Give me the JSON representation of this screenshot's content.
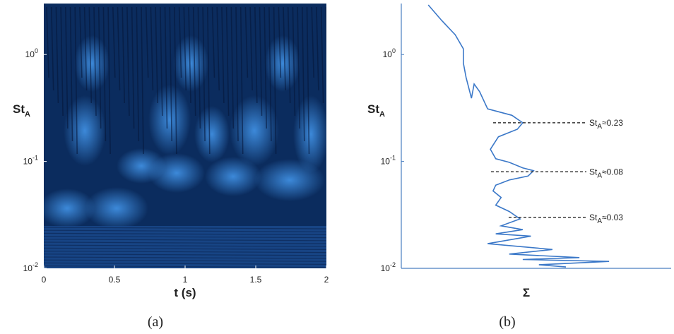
{
  "chart_data": [
    {
      "type": "image",
      "ylabel": {
        "text": "St",
        "sub": "A"
      },
      "xlabel": "t (s)",
      "caption": "(a)",
      "xlim": [
        0,
        2
      ],
      "xticks": [
        0,
        0.5,
        1,
        1.5,
        2
      ],
      "ylim": [
        0.01,
        3
      ],
      "log_y": true,
      "yticks": [
        {
          "value": 1,
          "label": "10",
          "exponent": "0"
        },
        {
          "value": 0.1,
          "label": "10",
          "exponent": "-1"
        },
        {
          "value": 0.01,
          "label": "10",
          "exponent": "-2"
        }
      ]
    },
    {
      "type": "line",
      "ylabel": {
        "text": "St",
        "sub": "A"
      },
      "xlabel": "Σ",
      "caption": "(b)",
      "color": "#3b78c8",
      "xlim": [
        0,
        1
      ],
      "ylim": [
        0.01,
        3
      ],
      "log_y": true,
      "yticks": [
        {
          "value": 1,
          "label": "10",
          "exponent": "0"
        },
        {
          "value": 0.1,
          "label": "10",
          "exponent": "-1"
        },
        {
          "value": 0.01,
          "label": "10",
          "exponent": "-2"
        }
      ],
      "x": [
        0.1,
        0.15,
        0.2,
        0.23,
        0.23,
        0.24,
        0.26,
        0.27,
        0.29,
        0.32,
        0.41,
        0.45,
        0.43,
        0.36,
        0.33,
        0.35,
        0.4,
        0.45,
        0.49,
        0.47,
        0.4,
        0.35,
        0.34,
        0.37,
        0.35,
        0.4,
        0.44,
        0.37,
        0.45,
        0.35,
        0.48,
        0.32,
        0.56,
        0.4,
        0.66,
        0.45,
        0.77,
        0.51,
        0.61
      ],
      "y": [
        2.91,
        2.08,
        1.53,
        1.13,
        0.83,
        0.61,
        0.39,
        0.53,
        0.45,
        0.31,
        0.27,
        0.23,
        0.2,
        0.17,
        0.13,
        0.106,
        0.098,
        0.087,
        0.082,
        0.073,
        0.067,
        0.06,
        0.053,
        0.046,
        0.039,
        0.034,
        0.029,
        0.025,
        0.023,
        0.021,
        0.02,
        0.017,
        0.015,
        0.0136,
        0.0126,
        0.0121,
        0.0116,
        0.0108,
        0.0103
      ],
      "annotations": [
        {
          "text": "St",
          "sub": "A",
          "rest": "≈0.23",
          "value": 0.23
        },
        {
          "text": "St",
          "sub": "A",
          "rest": "≈0.08",
          "value": 0.08
        },
        {
          "text": "St",
          "sub": "A",
          "rest": "≈0.03",
          "value": 0.03
        }
      ]
    }
  ]
}
